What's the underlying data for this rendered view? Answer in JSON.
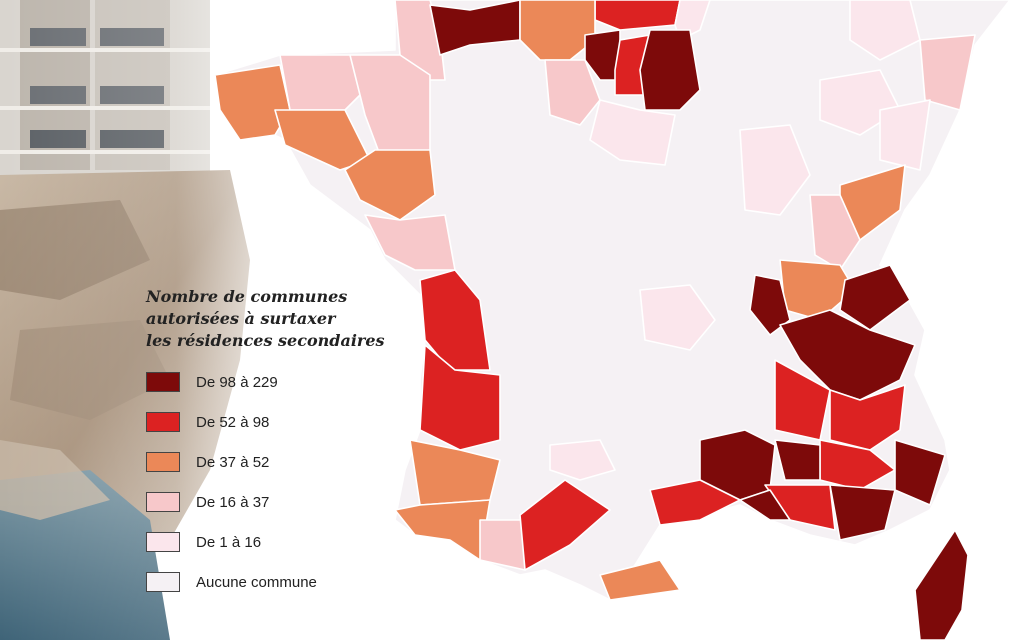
{
  "legend": {
    "title_lines": [
      "Nombre de communes",
      "autorisées à surtaxer",
      "les résidences secondaires"
    ],
    "items": [
      {
        "label": "De 98 à 229",
        "color": "#7d0a0a"
      },
      {
        "label": "De 52 à 98",
        "color": "#dc2222"
      },
      {
        "label": "De 37 à 52",
        "color": "#eb8858"
      },
      {
        "label": "De 16 à 37",
        "color": "#f7c8ca"
      },
      {
        "label": "De 1 à 16",
        "color": "#fbe6ec"
      },
      {
        "label": "Aucune commune",
        "color": "#f5f1f4"
      }
    ]
  },
  "regions_by_class": {
    "De 98 à 229": [
      "calvados",
      "val-d-oise",
      "seine-et-marne",
      "ain",
      "savoie",
      "isere",
      "hautes-alpes",
      "gard",
      "vaucluse",
      "var",
      "alpes-maritimes",
      "corse"
    ],
    "De 52 à 98": [
      "eure-seine-maritime",
      "essonne",
      "charente-maritime",
      "gironde",
      "drome",
      "alpes-de-haute-provence",
      "bouches-du-rhone",
      "herault",
      "ardeche",
      "aude-tarn"
    ],
    "De 37 à 52": [
      "oise",
      "finistere",
      "morbihan",
      "loire-atlantique",
      "doubs",
      "jura",
      "landes",
      "pyrenees-atlantiques",
      "pyrenees-orientales"
    ],
    "De 16 à 37": [
      "manche",
      "cotes-d-armor",
      "ille-et-vilaine",
      "vendee",
      "haute-savoie-rhone",
      "pyrenees",
      "bas-rhin",
      "eure-et-loir"
    ],
    "De 1 à 16": [
      "somme",
      "marne",
      "aube",
      "yonne",
      "puy-de-dome",
      "haute-vienne",
      "vosges",
      "aveyron"
    ],
    "Aucune commune": [
      "centre"
    ]
  }
}
